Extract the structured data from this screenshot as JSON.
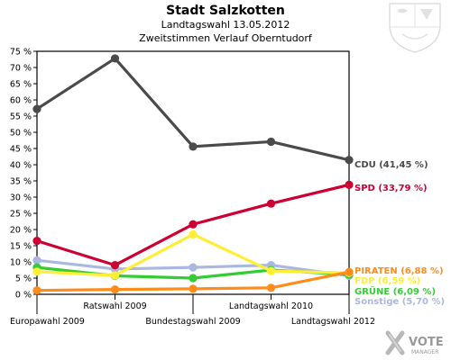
{
  "header": {
    "title": "Stadt Salzkotten",
    "subtitle": "Landtagswahl 13.05.2012",
    "subtitle2": "Zweitstimmen Verlauf Oberntudorf"
  },
  "branding": {
    "logo_text_top": "VOTE",
    "logo_text_bottom": "MANAGER"
  },
  "chart_data": {
    "type": "line",
    "title": "Stadt Salzkotten",
    "subtitle": "Landtagswahl 13.05.2012 — Zweitstimmen Verlauf Oberntudorf",
    "categories": [
      "Europawahl 2009",
      "Ratswahl 2009",
      "Bundestagswahl 2009",
      "Landtagswahl 2010",
      "Landtagswahl 2012"
    ],
    "ylim": [
      0,
      75
    ],
    "yticks": [
      "0 %",
      "5 %",
      "10 %",
      "15 %",
      "20 %",
      "25 %",
      "30 %",
      "35 %",
      "40 %",
      "45 %",
      "50 %",
      "55 %",
      "60 %",
      "65 %",
      "70 %",
      "75 %"
    ],
    "grid": false,
    "series": [
      {
        "name": "CDU",
        "color": "#4a4a4a",
        "values": [
          57.2,
          72.8,
          45.6,
          47.1,
          41.45
        ],
        "end_label": "CDU (41,45 %)"
      },
      {
        "name": "SPD",
        "color": "#cc0033",
        "values": [
          16.5,
          9.0,
          21.6,
          28.0,
          33.79
        ],
        "end_label": "SPD (33,79 %)"
      },
      {
        "name": "PIRATEN",
        "color": "#ff8c1a",
        "values": [
          1.2,
          1.5,
          1.7,
          2.0,
          6.88
        ],
        "end_label": "PIRATEN (6,88 %)"
      },
      {
        "name": "FDP",
        "color": "#ffee33",
        "values": [
          7.0,
          5.8,
          18.5,
          7.2,
          6.59
        ],
        "end_label": "FDP (6,59 %)"
      },
      {
        "name": "GRÜNE",
        "color": "#33cc33",
        "values": [
          8.3,
          5.7,
          5.0,
          7.5,
          6.09
        ],
        "end_label": "GRÜNE (6,09 %)"
      },
      {
        "name": "Sonstige",
        "color": "#aab8e0",
        "values": [
          10.5,
          7.8,
          8.3,
          9.0,
          5.7
        ],
        "end_label": "Sonstige (5,70 %)"
      }
    ]
  }
}
